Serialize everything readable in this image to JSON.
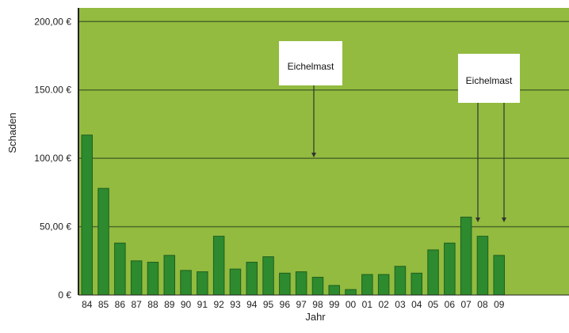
{
  "chart_data": {
    "type": "bar",
    "title": "",
    "xlabel": "Jahr",
    "ylabel": "Schaden",
    "ylim": [
      0,
      210
    ],
    "yticks": [
      0,
      50,
      100,
      150,
      200
    ],
    "ytick_labels": [
      "0 €",
      "50,00 €",
      "100,00 €",
      "150.00 €",
      "200,00 €"
    ],
    "grid": true,
    "categories": [
      "84",
      "85",
      "86",
      "87",
      "88",
      "89",
      "90",
      "91",
      "92",
      "93",
      "94",
      "95",
      "96",
      "97",
      "98",
      "99",
      "00",
      "01",
      "02",
      "03",
      "04",
      "05",
      "06",
      "07",
      "08",
      "09"
    ],
    "values": [
      117,
      78,
      38,
      25,
      24,
      29,
      18,
      17,
      43,
      19,
      24,
      28,
      16,
      17,
      13,
      7,
      4,
      15,
      15,
      21,
      16,
      33,
      38,
      57,
      43,
      29
    ],
    "annotations": [
      {
        "text": "Eichelmast",
        "points_to": [
          "96"
        ]
      },
      {
        "text": "Eichelmast",
        "points_to": [
          "05",
          "06"
        ]
      }
    ],
    "colors": {
      "plot_background": "#92bb3f",
      "bar": "#2d8a2f",
      "bar_edge": "#1f5f1f",
      "gridline": "#4d6a2a"
    }
  }
}
